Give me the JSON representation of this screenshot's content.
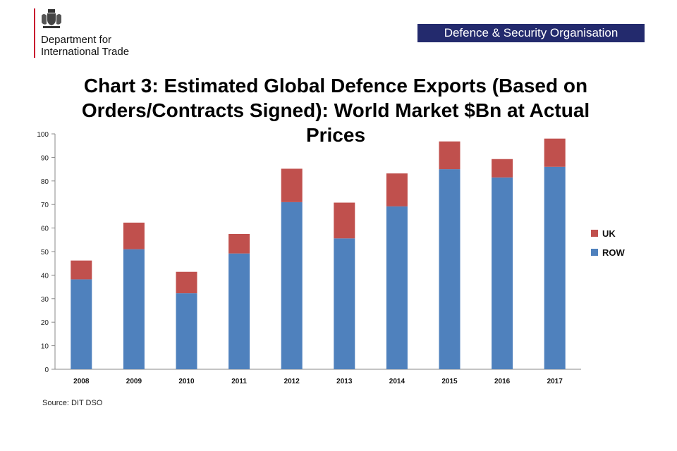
{
  "header": {
    "department_line1": "Department for",
    "department_line2": "International Trade",
    "banner": "Defence & Security Organisation",
    "crest_icon": "royal-coat-of-arms-icon"
  },
  "title_lines": [
    "Chart 3: Estimated Global Defence Exports (Based on",
    "Orders/Contracts Signed): World Market $Bn at Actual",
    "Prices"
  ],
  "source": "Source: DIT  DSO",
  "chart_data": {
    "type": "bar",
    "stacked": true,
    "title": "Chart 3: Estimated Global Defence Exports (Based on Orders/Contracts Signed): World Market $Bn at Actual Prices",
    "categories": [
      "2008",
      "2009",
      "2010",
      "2011",
      "2012",
      "2013",
      "2014",
      "2015",
      "2016",
      "2017"
    ],
    "series": [
      {
        "name": "ROW",
        "color": "#4f81bd",
        "values": [
          38.2,
          51,
          32.3,
          49.2,
          71,
          55.6,
          69.2,
          85,
          81.5,
          86
        ]
      },
      {
        "name": "UK",
        "color": "#c0504d",
        "values": [
          8,
          11.3,
          9.1,
          8.3,
          14.2,
          15.2,
          14,
          11.8,
          7.8,
          12
        ]
      }
    ],
    "legend_order": [
      "UK",
      "ROW"
    ],
    "legend_position": "right",
    "ylim": [
      0,
      100
    ],
    "yticks": [
      0,
      10,
      20,
      30,
      40,
      50,
      60,
      70,
      80,
      90,
      100
    ],
    "xlabel": "",
    "ylabel": "",
    "grid": false
  }
}
